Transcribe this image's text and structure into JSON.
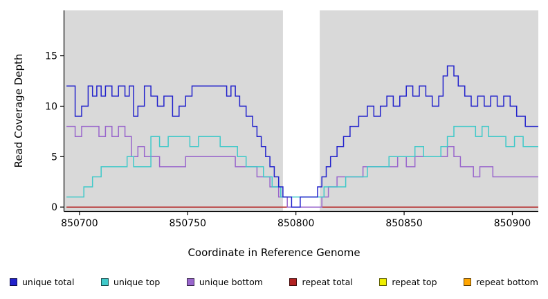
{
  "chart_data": {
    "type": "line",
    "step": true,
    "title": "",
    "xlabel": "Coordinate in Reference Genome",
    "ylabel": "Read Coverage Depth",
    "xlim": [
      850693,
      850912
    ],
    "ylim": [
      -0.4,
      19.5
    ],
    "x_ticks": [
      850700,
      850750,
      850800,
      850850,
      850900
    ],
    "y_ticks": [
      0,
      5,
      10,
      15
    ],
    "plot_bg": "#D9D9D9",
    "gap_band": {
      "x0": 850794,
      "x1": 850811,
      "color": "#FFFFFF"
    },
    "legend_position": "bottom",
    "series": [
      {
        "name": "unique total",
        "color": "#2222CC",
        "points": [
          [
            850694,
            12
          ],
          [
            850698,
            9
          ],
          [
            850701,
            10
          ],
          [
            850704,
            12
          ],
          [
            850706,
            11
          ],
          [
            850708,
            12
          ],
          [
            850710,
            11
          ],
          [
            850712,
            12
          ],
          [
            850715,
            11
          ],
          [
            850718,
            12
          ],
          [
            850721,
            11
          ],
          [
            850723,
            12
          ],
          [
            850725,
            9
          ],
          [
            850727,
            10
          ],
          [
            850730,
            12
          ],
          [
            850733,
            11
          ],
          [
            850736,
            10
          ],
          [
            850739,
            11
          ],
          [
            850743,
            9
          ],
          [
            850746,
            10
          ],
          [
            850749,
            11
          ],
          [
            850752,
            12
          ],
          [
            850768,
            11
          ],
          [
            850770,
            12
          ],
          [
            850772,
            11
          ],
          [
            850774,
            10
          ],
          [
            850777,
            9
          ],
          [
            850780,
            8
          ],
          [
            850782,
            7
          ],
          [
            850784,
            6
          ],
          [
            850786,
            5
          ],
          [
            850788,
            4
          ],
          [
            850790,
            3
          ],
          [
            850792,
            2
          ],
          [
            850794,
            1
          ],
          [
            850798,
            0
          ],
          [
            850802,
            1
          ],
          [
            850810,
            2
          ],
          [
            850812,
            3
          ],
          [
            850814,
            4
          ],
          [
            850816,
            5
          ],
          [
            850819,
            6
          ],
          [
            850822,
            7
          ],
          [
            850825,
            8
          ],
          [
            850829,
            9
          ],
          [
            850833,
            10
          ],
          [
            850836,
            9
          ],
          [
            850839,
            10
          ],
          [
            850842,
            11
          ],
          [
            850845,
            10
          ],
          [
            850848,
            11
          ],
          [
            850851,
            12
          ],
          [
            850854,
            11
          ],
          [
            850857,
            12
          ],
          [
            850860,
            11
          ],
          [
            850863,
            10
          ],
          [
            850866,
            11
          ],
          [
            850868,
            13
          ],
          [
            850870,
            14
          ],
          [
            850873,
            13
          ],
          [
            850875,
            12
          ],
          [
            850878,
            11
          ],
          [
            850881,
            10
          ],
          [
            850884,
            11
          ],
          [
            850887,
            10
          ],
          [
            850890,
            11
          ],
          [
            850893,
            10
          ],
          [
            850896,
            11
          ],
          [
            850899,
            10
          ],
          [
            850902,
            9
          ],
          [
            850906,
            8
          ],
          [
            850910,
            8
          ]
        ]
      },
      {
        "name": "unique top",
        "color": "#3FC9C9",
        "points": [
          [
            850694,
            1
          ],
          [
            850702,
            2
          ],
          [
            850706,
            3
          ],
          [
            850710,
            4
          ],
          [
            850718,
            4
          ],
          [
            850722,
            5
          ],
          [
            850725,
            4
          ],
          [
            850733,
            7
          ],
          [
            850737,
            6
          ],
          [
            850741,
            7
          ],
          [
            850751,
            6
          ],
          [
            850755,
            7
          ],
          [
            850765,
            6
          ],
          [
            850773,
            5
          ],
          [
            850777,
            4
          ],
          [
            850785,
            3
          ],
          [
            850789,
            2
          ],
          [
            850793,
            1
          ],
          [
            850813,
            2
          ],
          [
            850823,
            3
          ],
          [
            850833,
            4
          ],
          [
            850843,
            5
          ],
          [
            850855,
            6
          ],
          [
            850859,
            5
          ],
          [
            850867,
            6
          ],
          [
            850870,
            7
          ],
          [
            850873,
            8
          ],
          [
            850883,
            7
          ],
          [
            850886,
            8
          ],
          [
            850889,
            7
          ],
          [
            850897,
            6
          ],
          [
            850901,
            7
          ],
          [
            850905,
            6
          ],
          [
            850910,
            6
          ]
        ]
      },
      {
        "name": "unique bottom",
        "color": "#9966CC",
        "points": [
          [
            850694,
            8
          ],
          [
            850698,
            7
          ],
          [
            850701,
            8
          ],
          [
            850709,
            7
          ],
          [
            850712,
            8
          ],
          [
            850715,
            7
          ],
          [
            850718,
            8
          ],
          [
            850721,
            7
          ],
          [
            850724,
            5
          ],
          [
            850727,
            6
          ],
          [
            850730,
            5
          ],
          [
            850737,
            4
          ],
          [
            850749,
            5
          ],
          [
            850772,
            4
          ],
          [
            850782,
            3
          ],
          [
            850788,
            2
          ],
          [
            850792,
            1
          ],
          [
            850796,
            0
          ],
          [
            850812,
            1
          ],
          [
            850815,
            2
          ],
          [
            850819,
            3
          ],
          [
            850831,
            4
          ],
          [
            850847,
            5
          ],
          [
            850851,
            4
          ],
          [
            850855,
            5
          ],
          [
            850870,
            6
          ],
          [
            850873,
            5
          ],
          [
            850876,
            4
          ],
          [
            850882,
            3
          ],
          [
            850885,
            4
          ],
          [
            850891,
            3
          ],
          [
            850910,
            3
          ]
        ]
      },
      {
        "name": "repeat total",
        "color": "#B22222",
        "points": [
          [
            850694,
            0
          ],
          [
            850910,
            0
          ]
        ]
      },
      {
        "name": "repeat top",
        "color": "#EEEE00",
        "points": [
          [
            850694,
            0
          ],
          [
            850910,
            0
          ]
        ]
      },
      {
        "name": "repeat bottom",
        "color": "#FFA500",
        "points": [
          [
            850694,
            0
          ],
          [
            850910,
            0
          ]
        ]
      }
    ]
  }
}
